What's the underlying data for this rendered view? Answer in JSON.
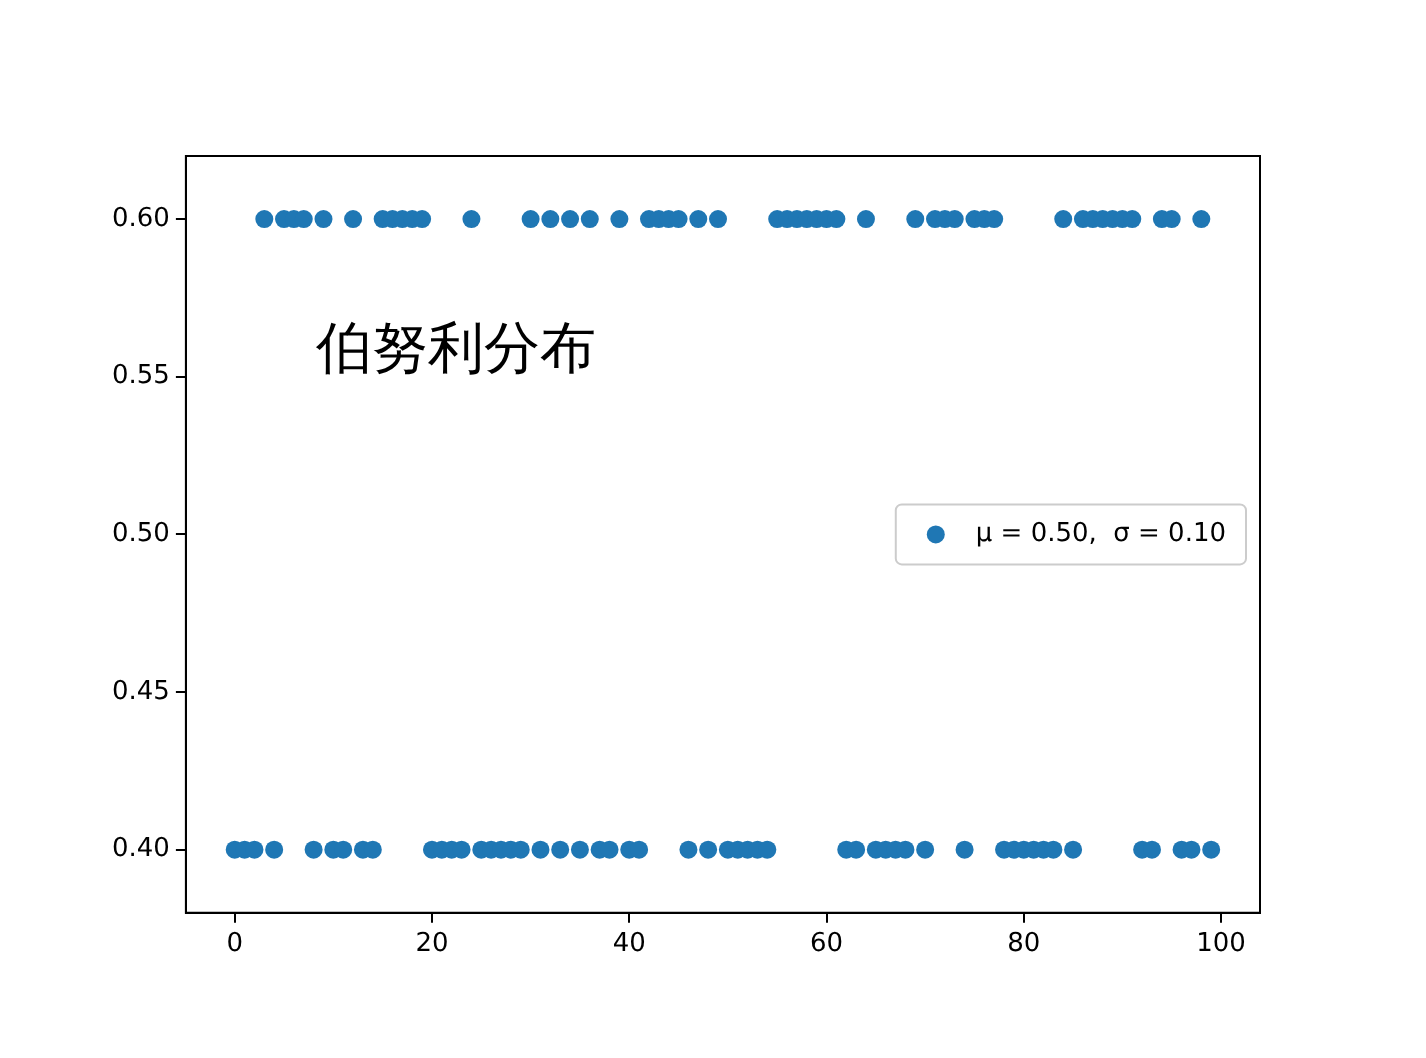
{
  "chart_data": {
    "type": "scatter",
    "annotations": [
      "伯努利分布"
    ],
    "x": [
      0,
      1,
      2,
      3,
      4,
      5,
      6,
      7,
      8,
      9,
      10,
      11,
      12,
      13,
      14,
      15,
      16,
      17,
      18,
      19,
      20,
      21,
      22,
      23,
      24,
      25,
      26,
      27,
      28,
      29,
      30,
      31,
      32,
      33,
      34,
      35,
      36,
      37,
      38,
      39,
      40,
      41,
      42,
      43,
      44,
      45,
      46,
      47,
      48,
      49,
      50,
      51,
      52,
      53,
      54,
      55,
      56,
      57,
      58,
      59,
      60,
      61,
      62,
      63,
      64,
      65,
      66,
      67,
      68,
      69,
      70,
      71,
      72,
      73,
      74,
      75,
      76,
      77,
      78,
      79,
      80,
      81,
      82,
      83,
      84,
      85,
      86,
      87,
      88,
      89,
      90,
      91,
      92,
      93,
      94,
      95,
      96,
      97,
      98,
      99
    ],
    "series": [
      {
        "name": "μ = 0.50,  σ = 0.10",
        "color": "#1f77b4",
        "values": [
          0.4,
          0.4,
          0.4,
          0.6,
          0.4,
          0.6,
          0.6,
          0.6,
          0.4,
          0.6,
          0.4,
          0.4,
          0.6,
          0.4,
          0.4,
          0.6,
          0.6,
          0.6,
          0.6,
          0.6,
          0.4,
          0.4,
          0.4,
          0.4,
          0.6,
          0.4,
          0.4,
          0.4,
          0.4,
          0.4,
          0.6,
          0.4,
          0.6,
          0.4,
          0.6,
          0.4,
          0.6,
          0.4,
          0.4,
          0.6,
          0.4,
          0.4,
          0.6,
          0.6,
          0.6,
          0.6,
          0.4,
          0.6,
          0.4,
          0.6,
          0.4,
          0.4,
          0.4,
          0.4,
          0.4,
          0.6,
          0.6,
          0.6,
          0.6,
          0.6,
          0.6,
          0.6,
          0.4,
          0.4,
          0.6,
          0.4,
          0.4,
          0.4,
          0.4,
          0.6,
          0.4,
          0.6,
          0.6,
          0.6,
          0.4,
          0.6,
          0.6,
          0.6,
          0.4,
          0.4,
          0.4,
          0.4,
          0.4,
          0.4,
          0.6,
          0.4,
          0.6,
          0.6,
          0.6,
          0.6,
          0.6,
          0.6,
          0.4,
          0.4,
          0.6,
          0.6,
          0.4,
          0.4,
          0.6,
          0.4
        ]
      }
    ],
    "xlim": [
      -4.95,
      103.95
    ],
    "xticks": [
      0,
      20,
      40,
      60,
      80,
      100
    ],
    "ylim": [
      0.38,
      0.62
    ],
    "yticks": [
      {
        "value": 0.4,
        "label": "0.40"
      },
      {
        "value": 0.45,
        "label": "0.45"
      },
      {
        "value": 0.5,
        "label": "0.50"
      },
      {
        "value": 0.55,
        "label": "0.55"
      },
      {
        "value": 0.6,
        "label": "0.60"
      }
    ],
    "marker": "circle",
    "legend": "right",
    "grid": false
  }
}
